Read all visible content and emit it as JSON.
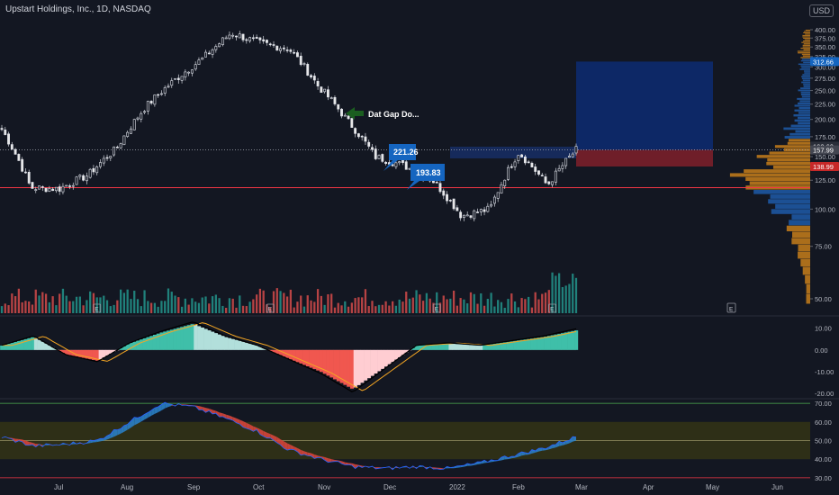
{
  "title": "Upstart Holdings, Inc., 1D, NASDAQ",
  "currency_badge": "USD",
  "colors": {
    "background": "#131722",
    "up": "#e8e8e8",
    "down": "#c7c7c7",
    "vol_up": "#26a69a",
    "vol_down": "#ef5350",
    "annotation_blue": "#1565c0",
    "arrow_green": "#1b5e20",
    "support_line": "#f23645",
    "target_box": "#0d2a6e",
    "stop_box": "#7a1f2a",
    "profile_orange": "#c77e1a",
    "profile_blue": "#1e5aa8",
    "hist_pos": "#3fbfa9",
    "hist_neg": "#f0574f",
    "rsi_band": "#3b3a12",
    "rsi_up": "#2a7fc7",
    "rsi_down": "#d6453b"
  },
  "annotations": {
    "gap_label": "Dat Gap Do...",
    "label_1": "221.26",
    "label_2": "193.83"
  },
  "chart_data": [
    {
      "type": "candlestick",
      "title": "Upstart Holdings, Inc., 1D, NASDAQ",
      "x_ticks": [
        "Jul",
        "Aug",
        "Sep",
        "Oct",
        "Nov",
        "Dec",
        "2022",
        "Feb",
        "Mar",
        "Apr",
        "May",
        "Jun"
      ],
      "y_ticks": [
        50,
        75,
        100,
        125,
        150,
        175,
        200,
        225,
        250,
        275,
        300,
        325,
        350,
        375,
        400
      ],
      "ylim": [
        40,
        410
      ],
      "close_path": [
        {
          "t": "Jun",
          "close": 185
        },
        {
          "t": "Jul",
          "close": 118
        },
        {
          "t": "Jul",
          "close": 117
        },
        {
          "t": "Aug",
          "close": 130
        },
        {
          "t": "Aug",
          "close": 160
        },
        {
          "t": "Sep",
          "close": 220
        },
        {
          "t": "Sep",
          "close": 270
        },
        {
          "t": "Oct",
          "close": 320
        },
        {
          "t": "Oct",
          "close": 390
        },
        {
          "t": "Oct",
          "close": 360
        },
        {
          "t": "Nov",
          "close": 345
        },
        {
          "t": "Nov",
          "close": 260
        },
        {
          "t": "Dec",
          "close": 200
        },
        {
          "t": "Dec",
          "close": 150
        },
        {
          "t": "2022",
          "close": 140
        },
        {
          "t": "2022",
          "close": 125
        },
        {
          "t": "Feb",
          "close": 95
        },
        {
          "t": "Feb",
          "close": 100
        },
        {
          "t": "Feb",
          "close": 155
        },
        {
          "t": "Feb",
          "close": 120
        },
        {
          "t": "Mar",
          "close": 158
        }
      ],
      "price_labels": [
        {
          "value": 312.66,
          "label": "312.66"
        },
        {
          "value": 162.6,
          "label": "162.60"
        },
        {
          "value": 157.99,
          "label": "157.99"
        },
        {
          "value": 138.99,
          "label": "138.99"
        }
      ],
      "support_level": 118,
      "reference_level": 157.99,
      "position_box": {
        "entry": 157.99,
        "target": 312.66,
        "stop": 138.99
      }
    },
    {
      "type": "bar",
      "title": "MACD histogram",
      "y_ticks": [
        10.0,
        0.0,
        -10.0,
        -20.0
      ],
      "ylim": [
        -22,
        14
      ],
      "trend": [
        2,
        6,
        -2,
        -5,
        3,
        8,
        12,
        6,
        2,
        -4,
        -10,
        -18,
        -8,
        2,
        3,
        2,
        4,
        6,
        9
      ]
    },
    {
      "type": "area",
      "title": "RSI",
      "y_ticks": [
        30.0,
        40.0,
        50.0,
        60.0,
        70.0
      ],
      "ylim": [
        28,
        72
      ],
      "band": [
        40,
        60
      ],
      "midline": 50,
      "trend": [
        52,
        47,
        48,
        50,
        60,
        70,
        68,
        62,
        55,
        45,
        40,
        36,
        35,
        36,
        35,
        38,
        42,
        46,
        52
      ]
    }
  ]
}
